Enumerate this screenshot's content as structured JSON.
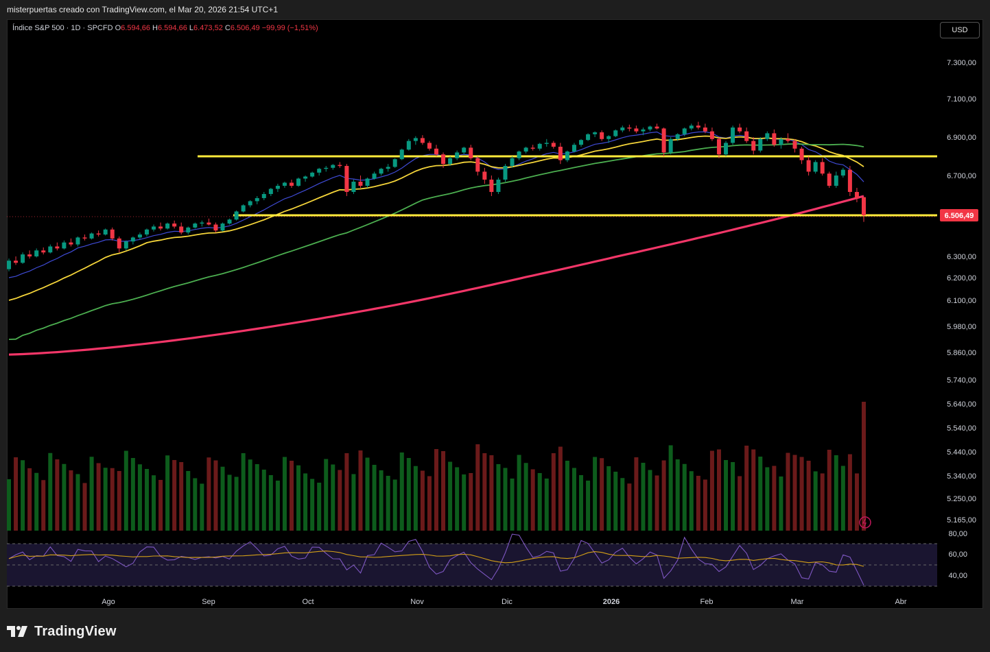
{
  "header": {
    "author_line": "misterpuertas creado con TradingView.com, el Mar 20, 2026 21:54 UTC+1"
  },
  "legend": {
    "symbol": "Índice S&P 500 · 1D · SPCFD",
    "o_label": "O",
    "o_value": "6.594,66",
    "h_label": "H",
    "h_value": "6.594,66",
    "l_label": "L",
    "l_value": "6.473,52",
    "c_label": "C",
    "c_value": "6.506,49",
    "change": "−99,99 (−1,51%)"
  },
  "currency_button": "USD",
  "price_badge": "6.506,49",
  "footer": {
    "brand": "TradingView"
  },
  "colors": {
    "up": "#089981",
    "down": "#f23645",
    "ema_fast": "#3f4bd6",
    "ema_mid": "#f5d53a",
    "sma_mid": "#4caf50",
    "sma_long": "#f23668",
    "level_line": "#ffeb3b",
    "vol_up": "#0d5c1c",
    "vol_down": "#6b1a1a",
    "rsi": "#7e57c2",
    "rsi_ma": "#d4a017"
  },
  "chart_data": {
    "type": "candlestick",
    "price_axis_ticks": [
      "7.300,00",
      "7.100,00",
      "6.900,00",
      "6.700,00",
      "6.300,00",
      "6.200,00",
      "6.100,00",
      "5.980,00",
      "5.860,00",
      "5.740,00",
      "5.640,00",
      "5.540,00",
      "5.440,00",
      "5.340,00",
      "5.250,00",
      "5.165,00"
    ],
    "rsi_axis_ticks": [
      "80,00",
      "60,00",
      "40,00"
    ],
    "time_axis_ticks": [
      "Ago",
      "Sep",
      "Oct",
      "Nov",
      "Dic",
      "2026",
      "Feb",
      "Mar",
      "Abr"
    ],
    "horizontal_levels": [
      6800,
      6506.49
    ],
    "last_close": 6506.49,
    "candles_ohlc": [
      [
        6240,
        6290,
        6230,
        6280
      ],
      [
        6280,
        6300,
        6260,
        6270
      ],
      [
        6270,
        6320,
        6265,
        6310
      ],
      [
        6310,
        6330,
        6290,
        6300
      ],
      [
        6300,
        6340,
        6295,
        6330
      ],
      [
        6330,
        6345,
        6310,
        6320
      ],
      [
        6320,
        6360,
        6315,
        6350
      ],
      [
        6350,
        6370,
        6330,
        6340
      ],
      [
        6340,
        6380,
        6335,
        6370
      ],
      [
        6370,
        6390,
        6350,
        6360
      ],
      [
        6360,
        6400,
        6350,
        6395
      ],
      [
        6395,
        6410,
        6380,
        6390
      ],
      [
        6390,
        6420,
        6385,
        6415
      ],
      [
        6415,
        6430,
        6400,
        6410
      ],
      [
        6410,
        6440,
        6405,
        6435
      ],
      [
        6435,
        6445,
        6380,
        6390
      ],
      [
        6390,
        6400,
        6320,
        6340
      ],
      [
        6340,
        6380,
        6330,
        6375
      ],
      [
        6375,
        6400,
        6360,
        6395
      ],
      [
        6395,
        6420,
        6385,
        6410
      ],
      [
        6410,
        6440,
        6400,
        6435
      ],
      [
        6435,
        6460,
        6425,
        6450
      ],
      [
        6450,
        6470,
        6430,
        6440
      ],
      [
        6440,
        6470,
        6435,
        6465
      ],
      [
        6465,
        6480,
        6440,
        6450
      ],
      [
        6450,
        6470,
        6410,
        6420
      ],
      [
        6420,
        6450,
        6410,
        6445
      ],
      [
        6445,
        6470,
        6440,
        6465
      ],
      [
        6465,
        6480,
        6450,
        6470
      ],
      [
        6470,
        6490,
        6455,
        6460
      ],
      [
        6460,
        6470,
        6420,
        6430
      ],
      [
        6430,
        6470,
        6425,
        6465
      ],
      [
        6465,
        6490,
        6460,
        6485
      ],
      [
        6485,
        6530,
        6480,
        6525
      ],
      [
        6525,
        6560,
        6520,
        6555
      ],
      [
        6555,
        6580,
        6545,
        6575
      ],
      [
        6575,
        6600,
        6560,
        6590
      ],
      [
        6590,
        6620,
        6580,
        6610
      ],
      [
        6610,
        6640,
        6600,
        6635
      ],
      [
        6635,
        6660,
        6620,
        6650
      ],
      [
        6650,
        6670,
        6640,
        6665
      ],
      [
        6665,
        6680,
        6640,
        6650
      ],
      [
        6650,
        6690,
        6645,
        6685
      ],
      [
        6685,
        6700,
        6670,
        6695
      ],
      [
        6695,
        6720,
        6690,
        6715
      ],
      [
        6715,
        6740,
        6700,
        6735
      ],
      [
        6735,
        6750,
        6720,
        6740
      ],
      [
        6740,
        6760,
        6730,
        6755
      ],
      [
        6755,
        6770,
        6740,
        6750
      ],
      [
        6750,
        6760,
        6600,
        6620
      ],
      [
        6620,
        6680,
        6610,
        6670
      ],
      [
        6670,
        6700,
        6640,
        6650
      ],
      [
        6650,
        6690,
        6640,
        6685
      ],
      [
        6685,
        6720,
        6680,
        6710
      ],
      [
        6710,
        6740,
        6700,
        6735
      ],
      [
        6735,
        6760,
        6720,
        6745
      ],
      [
        6745,
        6790,
        6740,
        6785
      ],
      [
        6785,
        6840,
        6780,
        6835
      ],
      [
        6835,
        6890,
        6830,
        6880
      ],
      [
        6880,
        6905,
        6860,
        6895
      ],
      [
        6895,
        6910,
        6860,
        6870
      ],
      [
        6870,
        6880,
        6830,
        6840
      ],
      [
        6840,
        6860,
        6800,
        6810
      ],
      [
        6810,
        6820,
        6740,
        6760
      ],
      [
        6760,
        6800,
        6750,
        6790
      ],
      [
        6790,
        6830,
        6780,
        6820
      ],
      [
        6820,
        6850,
        6810,
        6845
      ],
      [
        6845,
        6860,
        6780,
        6790
      ],
      [
        6790,
        6800,
        6700,
        6720
      ],
      [
        6720,
        6740,
        6660,
        6680
      ],
      [
        6680,
        6700,
        6600,
        6620
      ],
      [
        6620,
        6690,
        6610,
        6680
      ],
      [
        6680,
        6760,
        6670,
        6750
      ],
      [
        6750,
        6800,
        6740,
        6790
      ],
      [
        6790,
        6830,
        6780,
        6825
      ],
      [
        6825,
        6850,
        6815,
        6845
      ],
      [
        6845,
        6860,
        6830,
        6840
      ],
      [
        6840,
        6870,
        6830,
        6865
      ],
      [
        6865,
        6890,
        6850,
        6870
      ],
      [
        6870,
        6880,
        6840,
        6850
      ],
      [
        6850,
        6870,
        6760,
        6780
      ],
      [
        6780,
        6830,
        6770,
        6825
      ],
      [
        6825,
        6870,
        6820,
        6860
      ],
      [
        6860,
        6890,
        6850,
        6885
      ],
      [
        6885,
        6920,
        6880,
        6915
      ],
      [
        6915,
        6930,
        6900,
        6925
      ],
      [
        6925,
        6935,
        6880,
        6890
      ],
      [
        6890,
        6910,
        6870,
        6905
      ],
      [
        6905,
        6940,
        6900,
        6935
      ],
      [
        6935,
        6960,
        6925,
        6950
      ],
      [
        6950,
        6965,
        6930,
        6945
      ],
      [
        6945,
        6960,
        6920,
        6930
      ],
      [
        6930,
        6950,
        6910,
        6940
      ],
      [
        6940,
        6960,
        6930,
        6955
      ],
      [
        6955,
        6970,
        6940,
        6945
      ],
      [
        6945,
        6950,
        6800,
        6820
      ],
      [
        6820,
        6900,
        6810,
        6890
      ],
      [
        6890,
        6920,
        6880,
        6915
      ],
      [
        6915,
        6950,
        6905,
        6945
      ],
      [
        6945,
        6970,
        6935,
        6960
      ],
      [
        6960,
        6980,
        6940,
        6950
      ],
      [
        6950,
        6970,
        6920,
        6930
      ],
      [
        6930,
        6950,
        6880,
        6890
      ],
      [
        6890,
        6900,
        6790,
        6810
      ],
      [
        6810,
        6880,
        6800,
        6870
      ],
      [
        6870,
        6960,
        6860,
        6950
      ],
      [
        6950,
        6970,
        6920,
        6930
      ],
      [
        6930,
        6950,
        6870,
        6880
      ],
      [
        6880,
        6900,
        6810,
        6830
      ],
      [
        6830,
        6900,
        6820,
        6890
      ],
      [
        6890,
        6930,
        6880,
        6920
      ],
      [
        6920,
        6940,
        6850,
        6860
      ],
      [
        6860,
        6900,
        6840,
        6890
      ],
      [
        6890,
        6920,
        6870,
        6880
      ],
      [
        6880,
        6890,
        6820,
        6840
      ],
      [
        6840,
        6850,
        6760,
        6780
      ],
      [
        6780,
        6800,
        6700,
        6720
      ],
      [
        6720,
        6780,
        6710,
        6770
      ],
      [
        6770,
        6790,
        6700,
        6710
      ],
      [
        6710,
        6720,
        6640,
        6650
      ],
      [
        6650,
        6720,
        6640,
        6700
      ],
      [
        6700,
        6740,
        6690,
        6730
      ],
      [
        6730,
        6750,
        6600,
        6620
      ],
      [
        6620,
        6640,
        6570,
        6590
      ],
      [
        6594.66,
        6594.66,
        6473.52,
        6506.49
      ]
    ],
    "indicators": [
      "EMA 10",
      "EMA 21",
      "SMA 50",
      "SMA 200",
      "Volume",
      "RSI 14"
    ]
  }
}
